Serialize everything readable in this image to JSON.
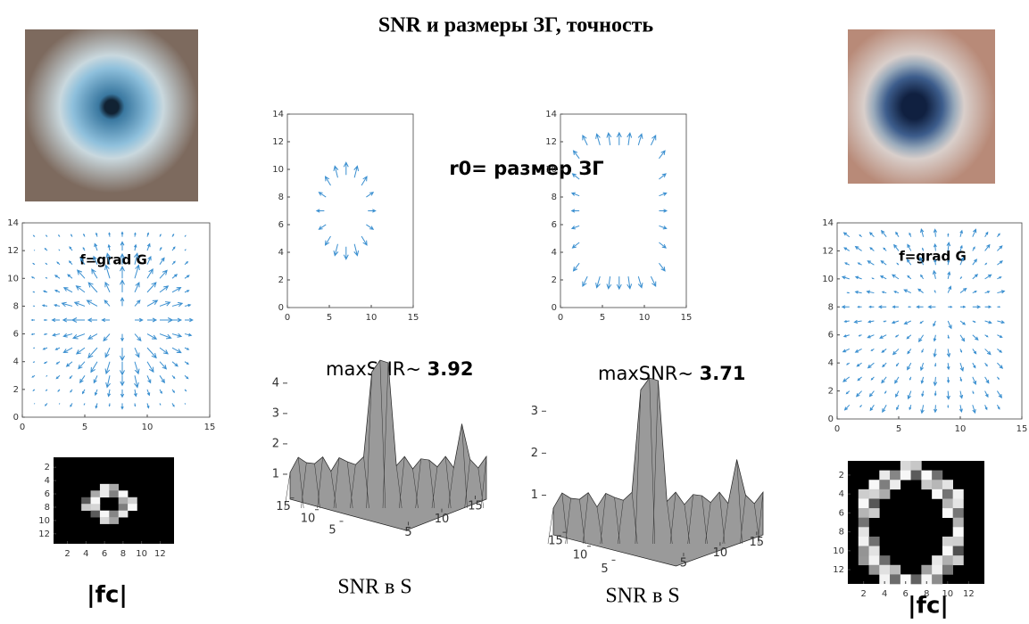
{
  "title": "SNR и размеры ЗГ, точность",
  "annotation": "r0= размер ЗГ",
  "left": {
    "quiver": {
      "label": "f=grad G",
      "xlim": [
        0,
        15
      ],
      "ylim": [
        0,
        14
      ],
      "xticks": [
        0,
        5,
        10,
        15
      ],
      "yticks": [
        0,
        2,
        4,
        6,
        8,
        10,
        12,
        14
      ]
    },
    "image": {
      "xlim": [
        0.5,
        13.5
      ],
      "ylim": [
        0.5,
        13.5
      ],
      "xticks": [
        2,
        4,
        6,
        8,
        10,
        12
      ],
      "yticks": [
        2,
        4,
        6,
        8,
        10,
        12
      ]
    },
    "caption": "|fc|"
  },
  "right": {
    "quiver": {
      "label": "f=grad G",
      "xlim": [
        0,
        15
      ],
      "ylim": [
        0,
        14
      ],
      "xticks": [
        0,
        5,
        10,
        15
      ],
      "yticks": [
        0,
        2,
        4,
        6,
        8,
        10,
        12,
        14
      ]
    },
    "image": {
      "xlim": [
        0.5,
        13.5
      ],
      "ylim": [
        0.5,
        13.5
      ],
      "xticks": [
        2,
        4,
        6,
        8,
        10,
        12
      ],
      "yticks": [
        2,
        4,
        6,
        8,
        10,
        12
      ]
    },
    "caption": "|fc|"
  },
  "center": [
    {
      "quiver": {
        "xlim": [
          0,
          15
        ],
        "ylim": [
          0,
          14
        ],
        "xticks": [
          0,
          5,
          10,
          15
        ],
        "yticks": [
          0,
          2,
          4,
          6,
          8,
          10,
          12,
          14
        ]
      },
      "max_snr_label": "maxSNR~",
      "max_snr": 3.92,
      "surface": {
        "zlim": [
          0.5,
          4.2
        ],
        "zticks": [
          1,
          2,
          3,
          4
        ],
        "xlim": [
          0,
          16
        ],
        "xticks": [
          5,
          10,
          15
        ],
        "ylim": [
          0,
          16
        ],
        "yticks": [
          5,
          10,
          15
        ]
      },
      "caption": "SNR в S"
    },
    {
      "quiver": {
        "xlim": [
          0,
          15
        ],
        "ylim": [
          0,
          14
        ],
        "xticks": [
          0,
          5,
          10,
          15
        ],
        "yticks": [
          0,
          2,
          4,
          6,
          8,
          10,
          12,
          14
        ]
      },
      "max_snr_label": "maxSNR~",
      "max_snr": 3.71,
      "surface": {
        "zlim": [
          0.5,
          3.6
        ],
        "zticks": [
          1,
          2,
          3
        ],
        "xlim": [
          0,
          16
        ],
        "xticks": [
          5,
          10,
          15
        ],
        "ylim": [
          0,
          16
        ],
        "yticks": [
          5,
          10,
          15
        ]
      },
      "caption": "SNR в S"
    }
  ]
}
